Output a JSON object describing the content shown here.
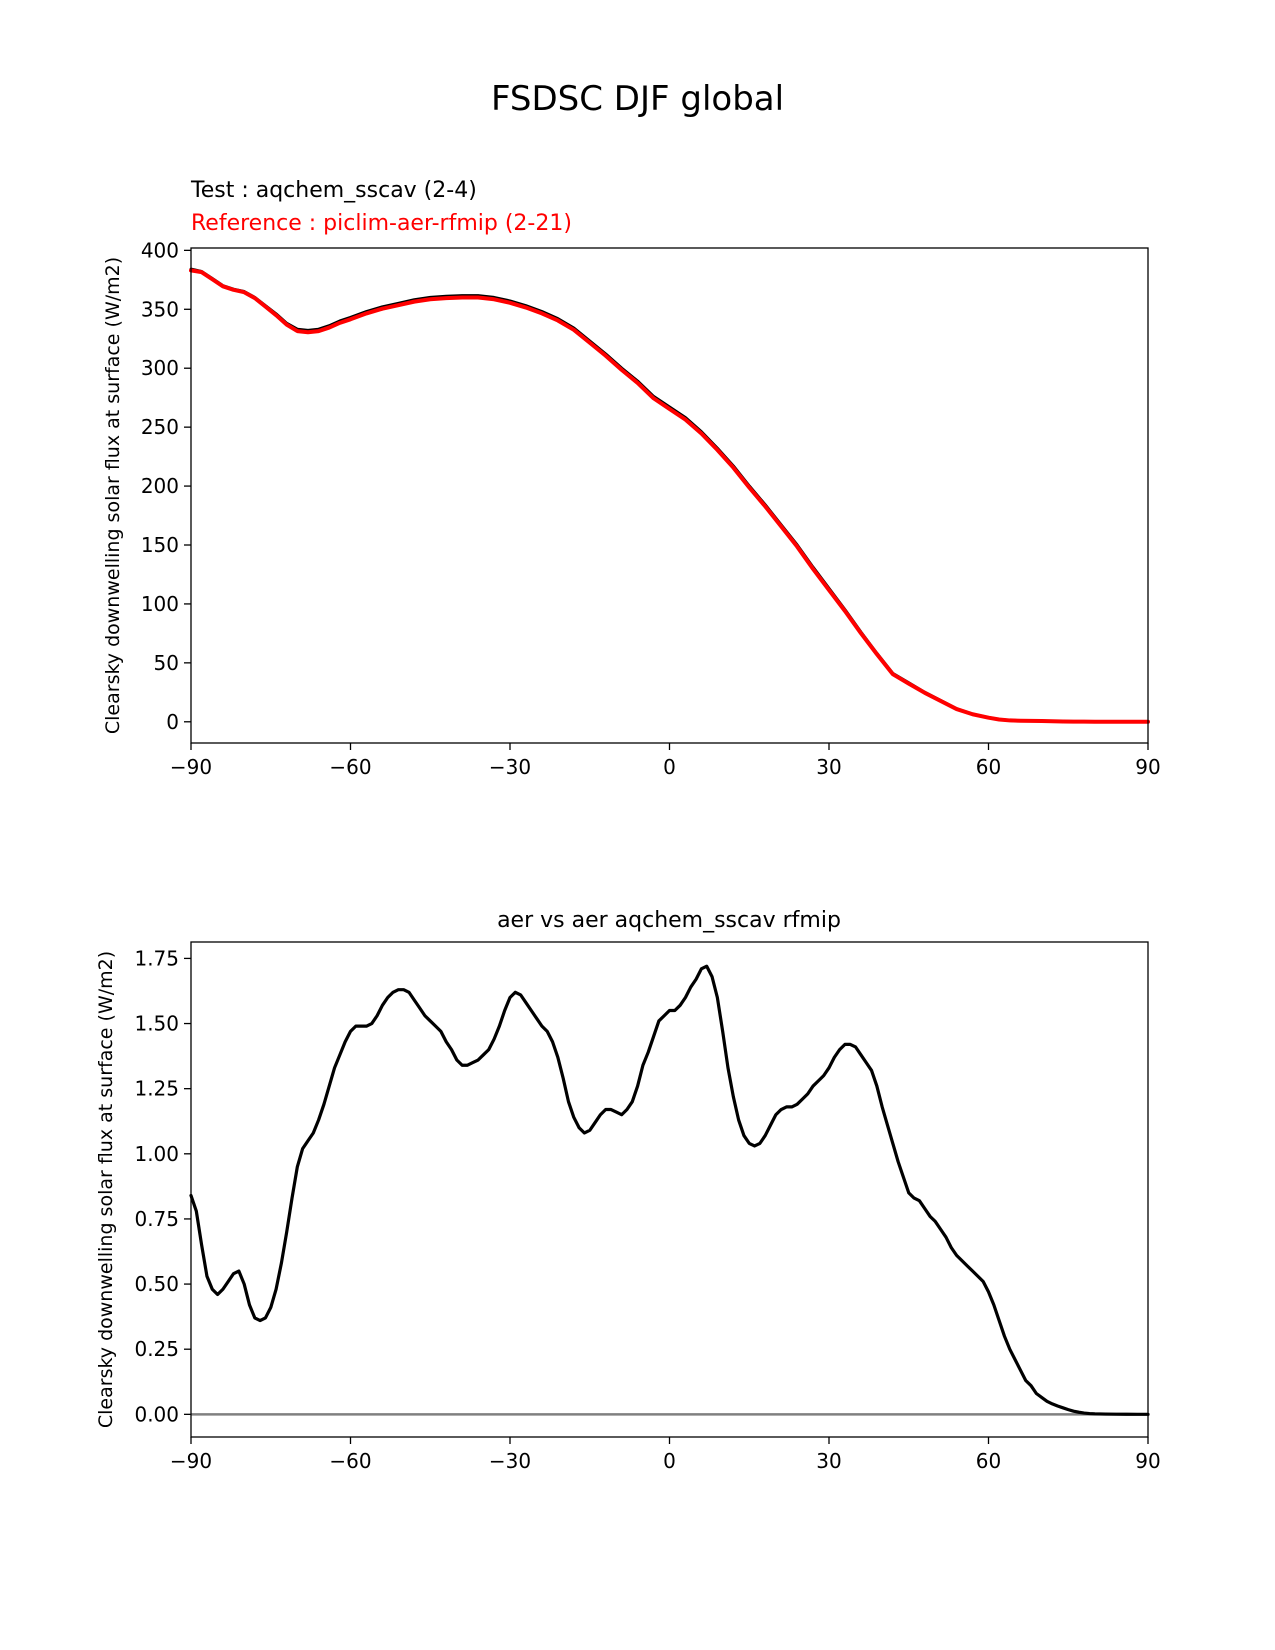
{
  "figure": {
    "title": "FSDSC DJF global"
  },
  "chart_data": [
    {
      "type": "line",
      "title_left_test": "Test : aqchem_sscav (2-4)",
      "title_left_reference": "Reference : piclim-aer-rfmip (2-21)",
      "title_center": "",
      "xlabel": "",
      "ylabel": "Clearsky downwelling solar flux at surface (W/m2)",
      "xlim": [
        -90,
        90
      ],
      "ylim": [
        -18,
        402
      ],
      "xticks": [
        -90,
        -60,
        -30,
        0,
        30,
        60,
        90
      ],
      "xtick_labels": [
        "−90",
        "−60",
        "−30",
        "0",
        "30",
        "60",
        "90"
      ],
      "yticks": [
        0,
        50,
        100,
        150,
        200,
        250,
        300,
        350,
        400
      ],
      "ytick_labels": [
        "0",
        "50",
        "100",
        "150",
        "200",
        "250",
        "300",
        "350",
        "400"
      ],
      "grid": false,
      "series": [
        {
          "color": "#000000",
          "x": [
            -90,
            -88,
            -86,
            -84,
            -82,
            -80,
            -78,
            -76,
            -74,
            -72,
            -70,
            -68,
            -66,
            -64,
            -62,
            -60,
            -57,
            -54,
            -51,
            -48,
            -45,
            -42,
            -39,
            -36,
            -33,
            -30,
            -27,
            -24,
            -21,
            -18,
            -15,
            -12,
            -9,
            -6,
            -3,
            0,
            3,
            6,
            9,
            12,
            15,
            18,
            21,
            24,
            27,
            30,
            33,
            36,
            39,
            42,
            45,
            48,
            51,
            54,
            57,
            60,
            62,
            64,
            66,
            68,
            70,
            72,
            74,
            76,
            78,
            80,
            82,
            84,
            86,
            88,
            90
          ],
          "y": [
            384,
            382,
            376,
            370,
            367,
            365,
            360,
            353,
            346,
            338,
            333,
            332,
            333,
            336,
            340,
            343,
            348,
            352,
            355,
            358,
            360,
            361,
            361.5,
            361.5,
            360,
            357,
            353,
            348,
            342,
            334,
            323,
            312,
            300,
            289,
            276,
            267,
            258,
            246,
            232,
            217,
            200,
            184,
            167,
            150,
            131,
            113,
            95,
            76,
            58,
            41,
            33,
            25,
            18,
            11,
            6.5,
            3.6,
            2.0,
            1.2,
            0.9,
            0.8,
            0.7,
            0.5,
            0.3,
            0.2,
            0.1,
            0.05,
            0.02,
            0.01,
            0.0,
            0.0,
            0.0
          ]
        },
        {
          "color": "#ff0000",
          "x": [
            -90,
            -88,
            -86,
            -84,
            -82,
            -80,
            -78,
            -76,
            -74,
            -72,
            -70,
            -68,
            -66,
            -64,
            -62,
            -60,
            -57,
            -54,
            -51,
            -48,
            -45,
            -42,
            -39,
            -36,
            -33,
            -30,
            -27,
            -24,
            -21,
            -18,
            -15,
            -12,
            -9,
            -6,
            -3,
            0,
            3,
            6,
            9,
            12,
            15,
            18,
            21,
            24,
            27,
            30,
            33,
            36,
            39,
            42,
            45,
            48,
            51,
            54,
            57,
            60,
            62,
            64,
            66,
            68,
            70,
            72,
            74,
            76,
            78,
            80,
            82,
            84,
            86,
            88,
            90
          ],
          "y": [
            383,
            381.5,
            375.5,
            369.5,
            366.5,
            364.5,
            359.5,
            352.3,
            345,
            337,
            331.5,
            330.5,
            331.5,
            334.5,
            338.5,
            341.5,
            346.5,
            350.5,
            353.5,
            356.5,
            358.5,
            359.5,
            360,
            360,
            358.5,
            355.5,
            351.5,
            346.5,
            340.5,
            332.6,
            321.6,
            310.6,
            298.6,
            287.5,
            274.5,
            265.4,
            256.4,
            244.6,
            230.7,
            215.7,
            198.8,
            182.8,
            165.8,
            148.7,
            129.7,
            111.8,
            94,
            75.2,
            57.4,
            40.4,
            32.4,
            24.6,
            17.7,
            10.8,
            6.4,
            3.5,
            1.95,
            1.15,
            0.85,
            0.75,
            0.65,
            0.45,
            0.28,
            0.18,
            0.1,
            0.05,
            0.02,
            0.01,
            0.0,
            0.0,
            0.0
          ]
        }
      ]
    },
    {
      "type": "line",
      "title_left_test": "",
      "title_left_reference": "",
      "title_center": "aer vs aer aqchem_sscav rfmip",
      "xlabel": "",
      "ylabel": "Clearsky downwelling solar flux at surface (W/m2)",
      "xlim": [
        -90,
        90
      ],
      "ylim": [
        -0.087,
        1.813
      ],
      "xticks": [
        -90,
        -60,
        -30,
        0,
        30,
        60,
        90
      ],
      "xtick_labels": [
        "−90",
        "−60",
        "−30",
        "0",
        "30",
        "60",
        "90"
      ],
      "yticks": [
        0,
        0.25,
        0.5,
        0.75,
        1.0,
        1.25,
        1.5,
        1.75
      ],
      "ytick_labels": [
        "0.00",
        "0.25",
        "0.50",
        "0.75",
        "1.00",
        "1.25",
        "1.50",
        "1.75"
      ],
      "grid": false,
      "zero_line": {
        "y": 0,
        "color": "#808080"
      },
      "series": [
        {
          "color": "#000000",
          "x": [
            -90,
            -89,
            -88,
            -87,
            -86,
            -85,
            -84,
            -83,
            -82,
            -81,
            -80,
            -79,
            -78,
            -77,
            -76,
            -75,
            -74,
            -73,
            -72,
            -71,
            -70,
            -69,
            -68,
            -67,
            -66,
            -65,
            -64,
            -63,
            -62,
            -61,
            -60,
            -59,
            -58,
            -57,
            -56,
            -55,
            -54,
            -53,
            -52,
            -51,
            -50,
            -49,
            -48,
            -47,
            -46,
            -45,
            -44,
            -43,
            -42,
            -41,
            -40,
            -39,
            -38,
            -37,
            -36,
            -35,
            -34,
            -33,
            -32,
            -31,
            -30,
            -29,
            -28,
            -27,
            -26,
            -25,
            -24,
            -23,
            -22,
            -21,
            -20,
            -19,
            -18,
            -17,
            -16,
            -15,
            -14,
            -13,
            -12,
            -11,
            -10,
            -9,
            -8,
            -7,
            -6,
            -5,
            -4,
            -3,
            -2,
            -1,
            0,
            1,
            2,
            3,
            4,
            5,
            6,
            7,
            8,
            9,
            10,
            11,
            12,
            13,
            14,
            15,
            16,
            17,
            18,
            19,
            20,
            21,
            22,
            23,
            24,
            25,
            26,
            27,
            28,
            29,
            30,
            31,
            32,
            33,
            34,
            35,
            36,
            37,
            38,
            39,
            40,
            41,
            42,
            43,
            44,
            45,
            46,
            47,
            48,
            49,
            50,
            51,
            52,
            53,
            54,
            55,
            56,
            57,
            58,
            59,
            60,
            61,
            62,
            63,
            64,
            65,
            66,
            67,
            68,
            69,
            70,
            71,
            72,
            73,
            74,
            75,
            76,
            77,
            78,
            79,
            80,
            82,
            84,
            86,
            88,
            90
          ],
          "y": [
            0.84,
            0.78,
            0.65,
            0.53,
            0.48,
            0.46,
            0.48,
            0.51,
            0.54,
            0.55,
            0.5,
            0.42,
            0.37,
            0.36,
            0.37,
            0.41,
            0.48,
            0.58,
            0.7,
            0.83,
            0.95,
            1.02,
            1.05,
            1.08,
            1.13,
            1.19,
            1.26,
            1.33,
            1.38,
            1.43,
            1.47,
            1.49,
            1.49,
            1.49,
            1.5,
            1.53,
            1.57,
            1.6,
            1.62,
            1.63,
            1.63,
            1.62,
            1.59,
            1.56,
            1.53,
            1.51,
            1.49,
            1.47,
            1.43,
            1.4,
            1.36,
            1.34,
            1.34,
            1.35,
            1.36,
            1.38,
            1.4,
            1.44,
            1.49,
            1.55,
            1.6,
            1.62,
            1.61,
            1.58,
            1.55,
            1.52,
            1.49,
            1.47,
            1.43,
            1.37,
            1.29,
            1.2,
            1.14,
            1.1,
            1.08,
            1.09,
            1.12,
            1.15,
            1.17,
            1.17,
            1.16,
            1.15,
            1.17,
            1.2,
            1.26,
            1.34,
            1.39,
            1.45,
            1.51,
            1.53,
            1.55,
            1.55,
            1.57,
            1.6,
            1.64,
            1.67,
            1.71,
            1.72,
            1.68,
            1.6,
            1.47,
            1.33,
            1.22,
            1.13,
            1.07,
            1.04,
            1.03,
            1.04,
            1.07,
            1.11,
            1.15,
            1.17,
            1.18,
            1.18,
            1.19,
            1.21,
            1.23,
            1.26,
            1.28,
            1.3,
            1.33,
            1.37,
            1.4,
            1.42,
            1.42,
            1.41,
            1.38,
            1.35,
            1.32,
            1.26,
            1.18,
            1.11,
            1.04,
            0.97,
            0.91,
            0.85,
            0.83,
            0.82,
            0.79,
            0.76,
            0.74,
            0.71,
            0.68,
            0.64,
            0.61,
            0.59,
            0.57,
            0.55,
            0.53,
            0.51,
            0.47,
            0.42,
            0.36,
            0.3,
            0.25,
            0.21,
            0.17,
            0.13,
            0.11,
            0.08,
            0.065,
            0.05,
            0.04,
            0.032,
            0.025,
            0.018,
            0.012,
            0.008,
            0.005,
            0.003,
            0.002,
            0.001,
            0.0005,
            0.0002,
            0.0,
            0.0
          ]
        }
      ]
    }
  ]
}
